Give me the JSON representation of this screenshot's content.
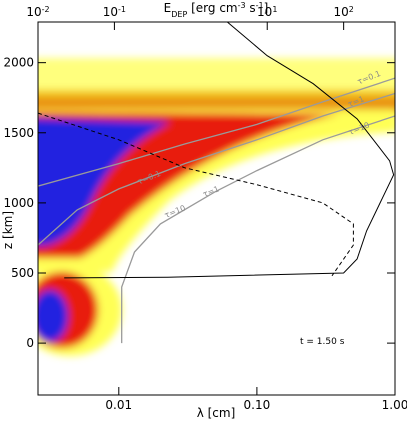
{
  "chart_data": {
    "type": "line",
    "xlabel": "λ [cm]",
    "ylabel": "z [km]",
    "x2label": [
      "E",
      "DEP",
      " [erg cm",
      "-3",
      " s",
      "-1",
      "]"
    ],
    "annotation": "t = 1.50 s",
    "xscale": "log",
    "xlim": [
      0.0026,
      1.0
    ],
    "xticks": [
      0.01,
      {
        "value": 0.1,
        "label": "0.10"
      },
      {
        "value": 1,
        "label": "1.00"
      }
    ],
    "x2scale": "log",
    "x2lim": [
      0.01,
      470
    ],
    "x2ticks": [
      {
        "value": 0.01,
        "label": "10-2"
      },
      {
        "value": 0.1,
        "label": "10-1"
      },
      {
        "value": 10,
        "label": "101"
      },
      {
        "value": 100,
        "label": "102"
      }
    ],
    "ylim": [
      -370,
      2290
    ],
    "yticks": [
      0,
      500,
      1000,
      1500,
      2000
    ],
    "series": [
      {
        "name": "τ=0.1",
        "color": "#9a9a9a",
        "x": [
          0.0026,
          0.01,
          0.03,
          0.1,
          0.3,
          1.0
        ],
        "values": [
          1120,
          1280,
          1420,
          1560,
          1720,
          1890
        ]
      },
      {
        "name": "τ=1",
        "color": "#9a9a9a",
        "x": [
          0.0026,
          0.005,
          0.01,
          0.03,
          0.1,
          0.3,
          1.0
        ],
        "values": [
          700,
          950,
          1100,
          1280,
          1450,
          1620,
          1780
        ]
      },
      {
        "name": "τ=10",
        "color": "#9a9a9a",
        "x": [
          0.0105,
          0.0105,
          0.013,
          0.02,
          0.05,
          0.1,
          0.3,
          1.0
        ],
        "values": [
          0,
          400,
          650,
          850,
          1080,
          1230,
          1450,
          1620
        ]
      },
      {
        "color": "#000000",
        "axis": "x2",
        "x": [
          3.0,
          10,
          40,
          150,
          400,
          450,
          300,
          200,
          150,
          100,
          0.5,
          0.022
        ],
        "values": [
          2290,
          2050,
          1850,
          1600,
          1300,
          1200,
          1000,
          800,
          600,
          500,
          470,
          465
        ]
      },
      {
        "color": "#000000",
        "dashed": true,
        "x": [
          0.0026,
          0.01,
          0.03,
          0.1,
          0.3,
          0.5,
          0.5,
          0.35
        ],
        "values": [
          1640,
          1450,
          1250,
          1130,
          1000,
          850,
          700,
          480
        ]
      }
    ]
  }
}
